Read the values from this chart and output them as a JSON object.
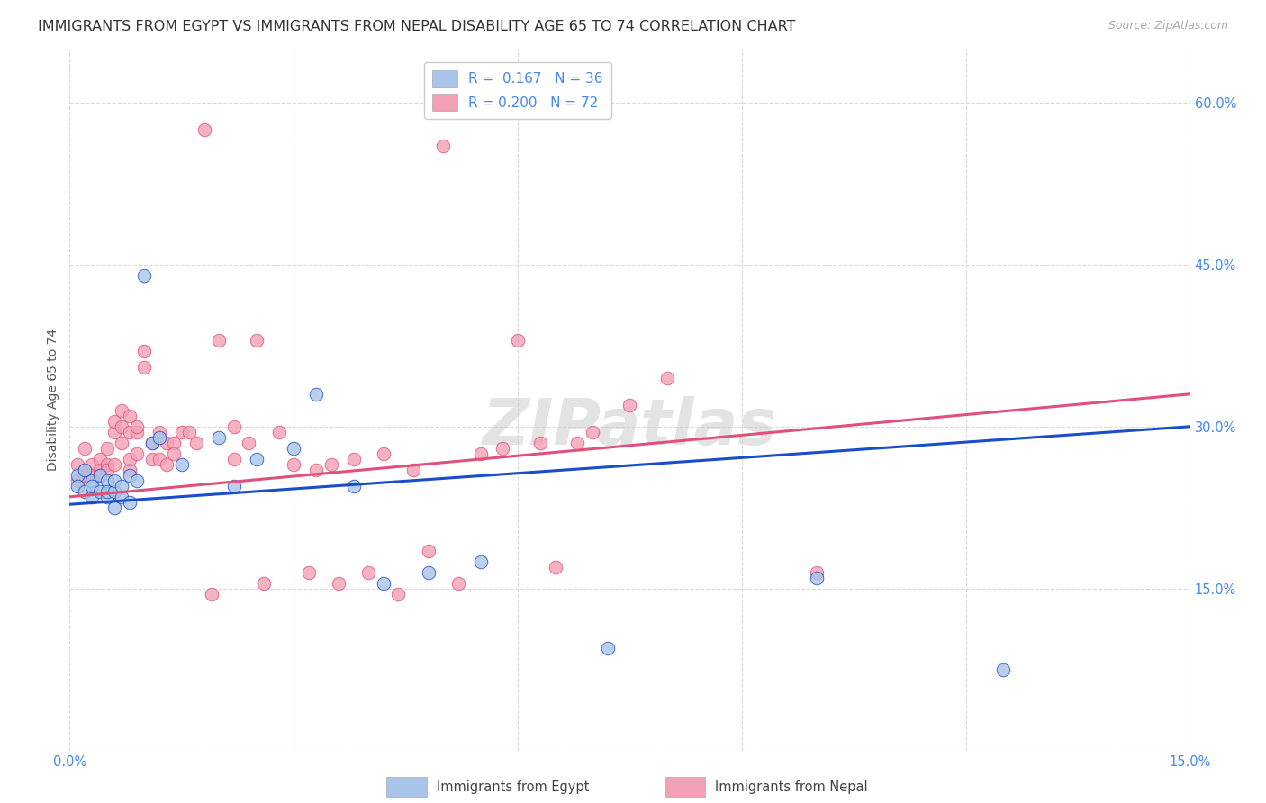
{
  "title": "IMMIGRANTS FROM EGYPT VS IMMIGRANTS FROM NEPAL DISABILITY AGE 65 TO 74 CORRELATION CHART",
  "source": "Source: ZipAtlas.com",
  "ylabel_label": "Disability Age 65 to 74",
  "legend_label1": "Immigrants from Egypt",
  "legend_label2": "Immigrants from Nepal",
  "R1": "0.167",
  "N1": "36",
  "R2": "0.200",
  "N2": "72",
  "color_egypt": "#a8c4e8",
  "color_nepal": "#f2a0b5",
  "color_line_egypt": "#1a4dcc",
  "color_line_nepal": "#e0507a",
  "xlim": [
    0.0,
    0.15
  ],
  "ylim": [
    0.0,
    0.65
  ],
  "xticks": [
    0.0,
    0.03,
    0.06,
    0.09,
    0.12,
    0.15
  ],
  "yticks": [
    0.0,
    0.15,
    0.3,
    0.45,
    0.6
  ],
  "xtick_labels": [
    "0.0%",
    "",
    "",
    "",
    "",
    "15.0%"
  ],
  "ytick_labels": [
    "",
    "15.0%",
    "30.0%",
    "45.0%",
    "60.0%"
  ],
  "egypt_x": [
    0.001,
    0.001,
    0.002,
    0.002,
    0.003,
    0.003,
    0.003,
    0.004,
    0.004,
    0.005,
    0.005,
    0.005,
    0.006,
    0.006,
    0.006,
    0.007,
    0.007,
    0.008,
    0.008,
    0.009,
    0.01,
    0.011,
    0.012,
    0.015,
    0.02,
    0.022,
    0.025,
    0.03,
    0.033,
    0.038,
    0.042,
    0.048,
    0.055,
    0.072,
    0.1,
    0.125
  ],
  "egypt_y": [
    0.255,
    0.245,
    0.26,
    0.24,
    0.25,
    0.235,
    0.245,
    0.24,
    0.255,
    0.235,
    0.25,
    0.24,
    0.225,
    0.24,
    0.25,
    0.235,
    0.245,
    0.23,
    0.255,
    0.25,
    0.44,
    0.285,
    0.29,
    0.265,
    0.29,
    0.245,
    0.27,
    0.28,
    0.33,
    0.245,
    0.155,
    0.165,
    0.175,
    0.095,
    0.16,
    0.075
  ],
  "nepal_x": [
    0.001,
    0.001,
    0.002,
    0.002,
    0.002,
    0.003,
    0.003,
    0.003,
    0.004,
    0.004,
    0.004,
    0.005,
    0.005,
    0.005,
    0.006,
    0.006,
    0.006,
    0.007,
    0.007,
    0.007,
    0.008,
    0.008,
    0.008,
    0.008,
    0.009,
    0.009,
    0.009,
    0.01,
    0.01,
    0.011,
    0.011,
    0.012,
    0.012,
    0.013,
    0.013,
    0.014,
    0.014,
    0.015,
    0.016,
    0.017,
    0.018,
    0.019,
    0.02,
    0.022,
    0.022,
    0.024,
    0.025,
    0.026,
    0.028,
    0.03,
    0.032,
    0.033,
    0.035,
    0.036,
    0.038,
    0.04,
    0.042,
    0.044,
    0.046,
    0.048,
    0.05,
    0.052,
    0.055,
    0.058,
    0.06,
    0.063,
    0.065,
    0.068,
    0.07,
    0.075,
    0.08,
    0.1
  ],
  "nepal_y": [
    0.25,
    0.265,
    0.255,
    0.26,
    0.28,
    0.25,
    0.265,
    0.255,
    0.27,
    0.26,
    0.255,
    0.265,
    0.28,
    0.26,
    0.295,
    0.305,
    0.265,
    0.285,
    0.315,
    0.3,
    0.26,
    0.295,
    0.27,
    0.31,
    0.295,
    0.275,
    0.3,
    0.355,
    0.37,
    0.27,
    0.285,
    0.27,
    0.295,
    0.285,
    0.265,
    0.285,
    0.275,
    0.295,
    0.295,
    0.285,
    0.575,
    0.145,
    0.38,
    0.3,
    0.27,
    0.285,
    0.38,
    0.155,
    0.295,
    0.265,
    0.165,
    0.26,
    0.265,
    0.155,
    0.27,
    0.165,
    0.275,
    0.145,
    0.26,
    0.185,
    0.56,
    0.155,
    0.275,
    0.28,
    0.38,
    0.285,
    0.17,
    0.285,
    0.295,
    0.32,
    0.345,
    0.165
  ],
  "watermark": "ZIPatlas",
  "background_color": "#ffffff",
  "grid_color": "#d8d8d8",
  "title_color": "#333333",
  "axis_color": "#4488ee",
  "title_fontsize": 11.5,
  "axis_label_fontsize": 10,
  "tick_fontsize": 10.5
}
